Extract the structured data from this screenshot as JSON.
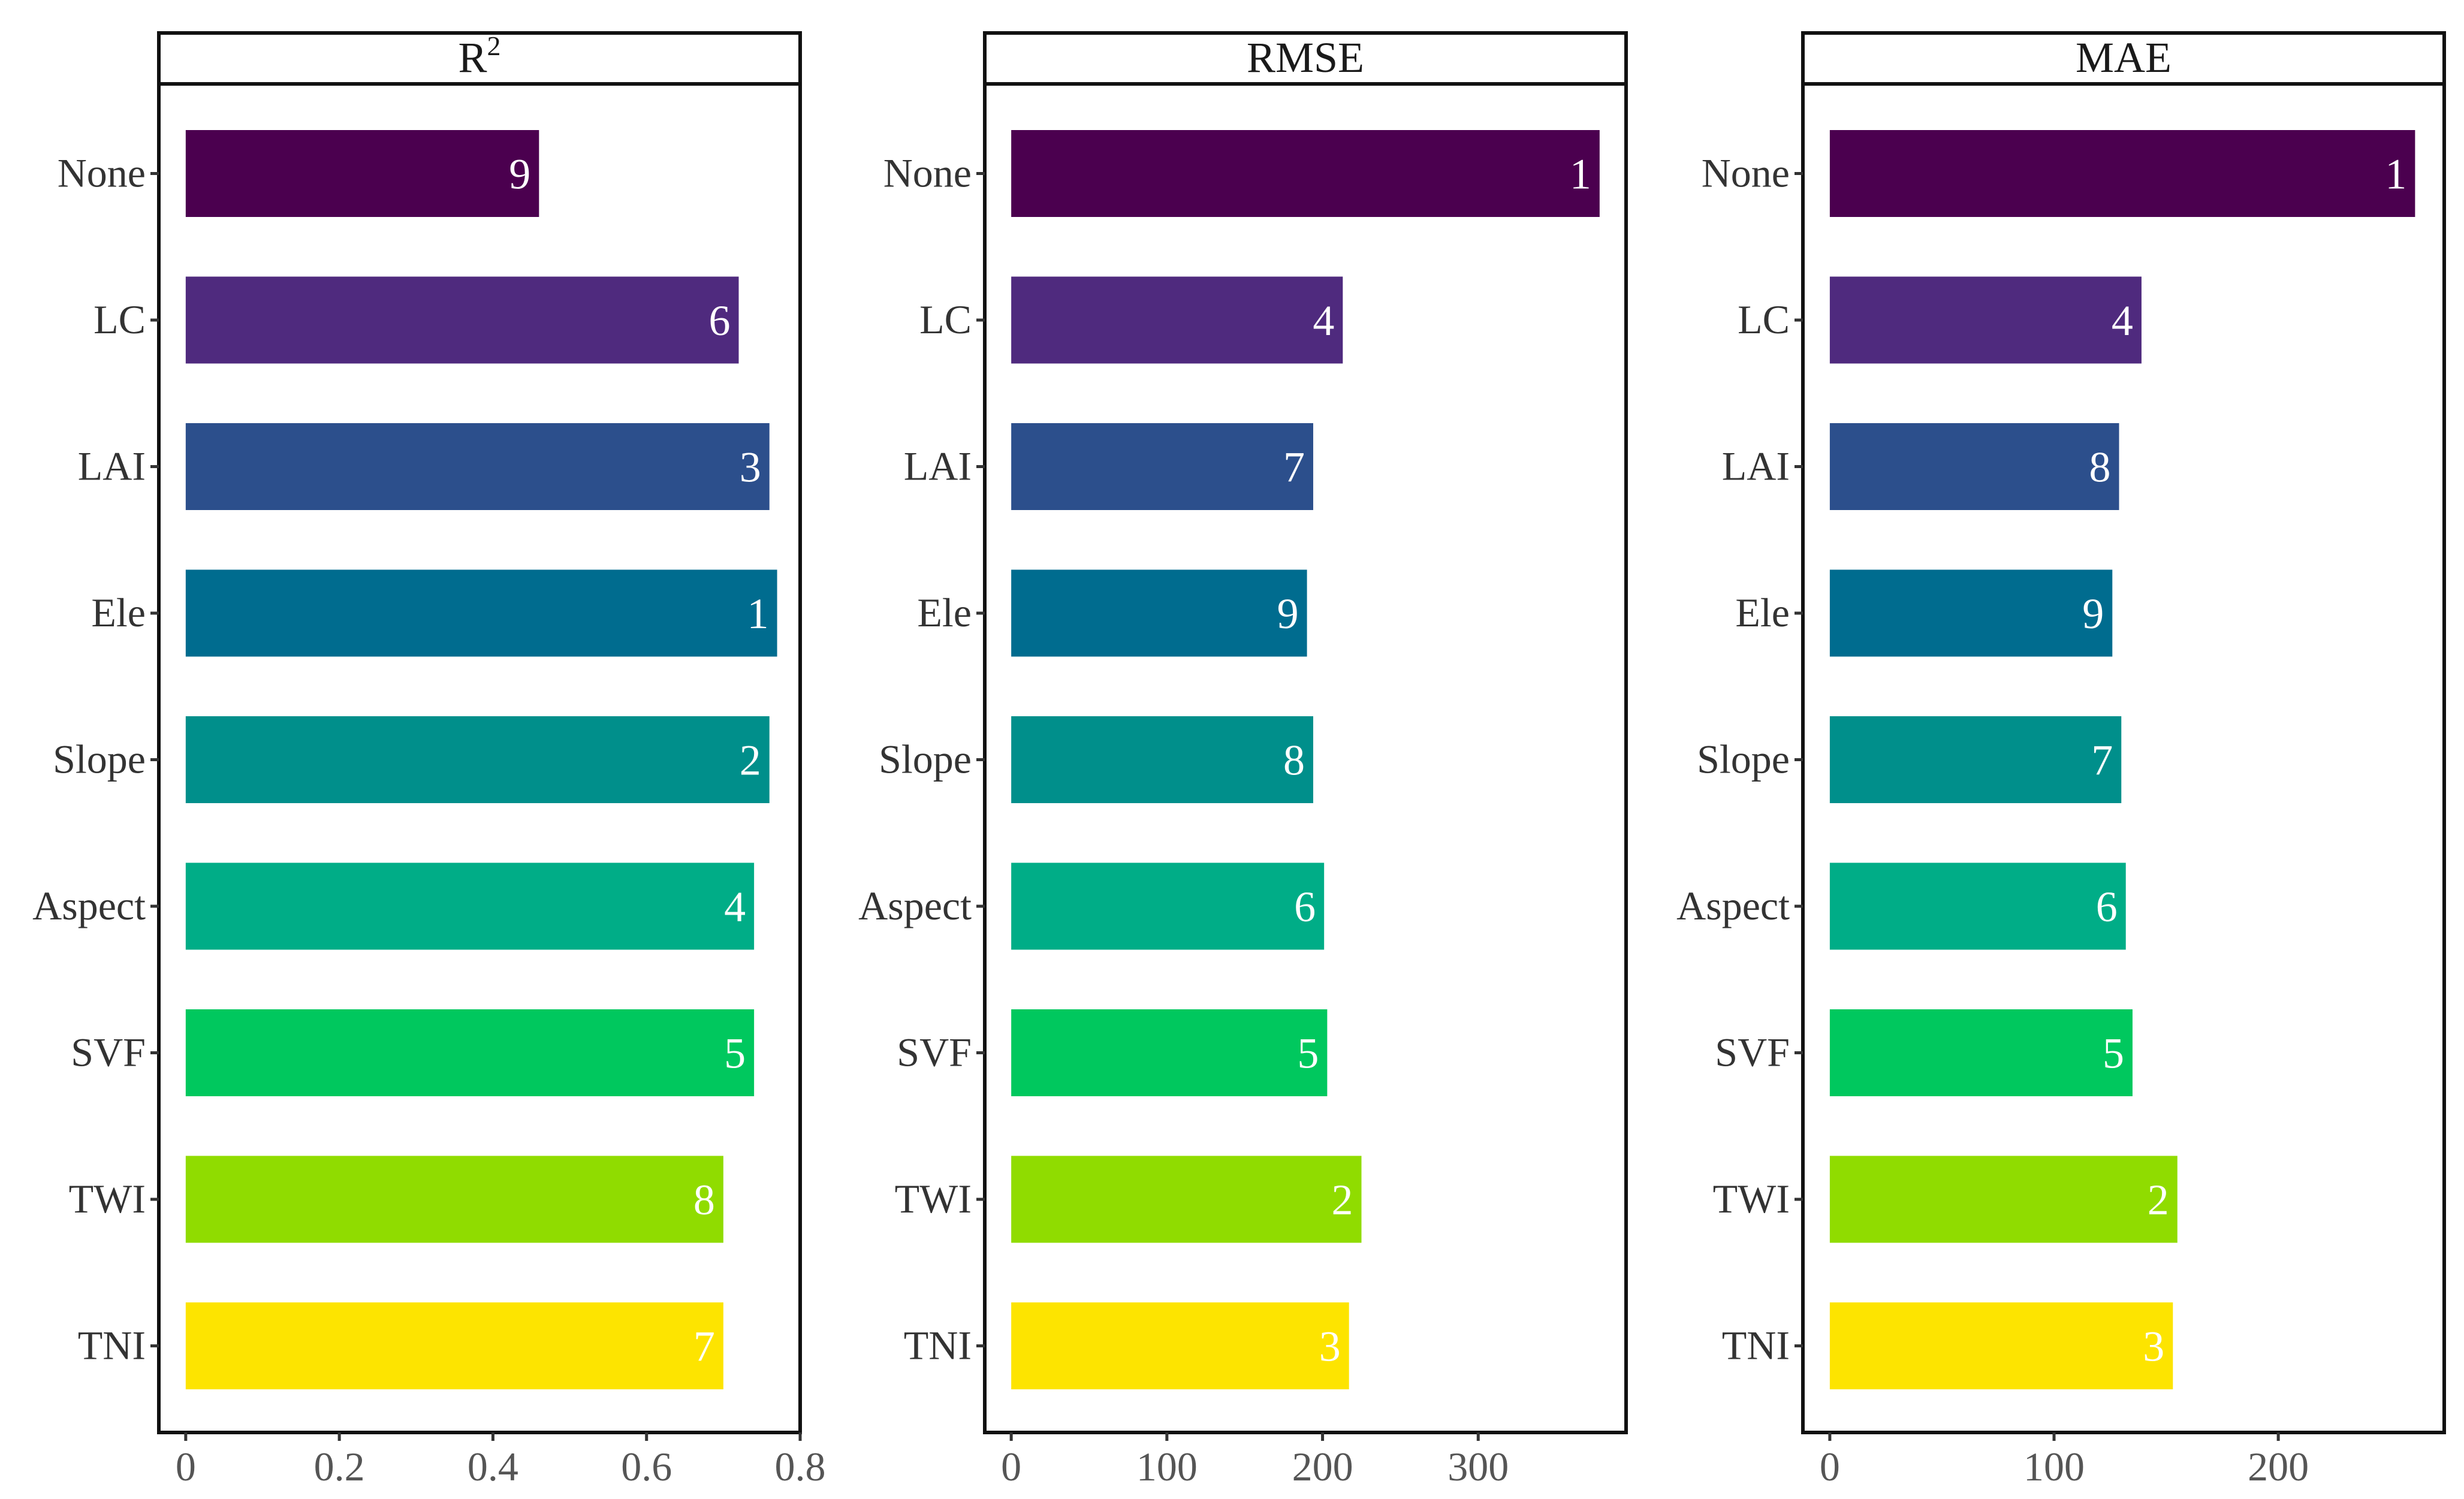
{
  "chart_data": [
    {
      "type": "bar",
      "orientation": "horizontal",
      "title": "R",
      "title_sup": "2",
      "categories": [
        "None",
        "LC",
        "LAI",
        "Ele",
        "Slope",
        "Aspect",
        "SVF",
        "TWI",
        "TNI"
      ],
      "values": [
        0.46,
        0.72,
        0.76,
        0.77,
        0.76,
        0.74,
        0.74,
        0.7,
        0.7
      ],
      "ranks": [
        "9",
        "6",
        "3",
        "1",
        "2",
        "4",
        "5",
        "8",
        "7"
      ],
      "xlim": [
        -0.035,
        0.8
      ],
      "xticks": [
        0,
        0.2,
        0.4,
        0.6,
        0.8
      ],
      "xtick_labels": [
        "0",
        "0.2",
        "0.4",
        "0.6",
        "0.8"
      ]
    },
    {
      "type": "bar",
      "orientation": "horizontal",
      "title": "RMSE",
      "categories": [
        "None",
        "LC",
        "LAI",
        "Ele",
        "Slope",
        "Aspect",
        "SVF",
        "TWI",
        "TNI"
      ],
      "values": [
        378,
        213,
        194,
        190,
        194,
        201,
        203,
        225,
        217
      ],
      "ranks": [
        "1",
        "4",
        "7",
        "9",
        "8",
        "6",
        "5",
        "2",
        "3"
      ],
      "xlim": [
        -17,
        395
      ],
      "xticks": [
        0,
        100,
        200,
        300
      ],
      "xtick_labels": [
        "0",
        "100",
        "200",
        "300"
      ]
    },
    {
      "type": "bar",
      "orientation": "horizontal",
      "title": "MAE",
      "categories": [
        "None",
        "LC",
        "LAI",
        "Ele",
        "Slope",
        "Aspect",
        "SVF",
        "TWI",
        "TNI"
      ],
      "values": [
        261,
        139,
        129,
        126,
        130,
        132,
        135,
        155,
        153
      ],
      "ranks": [
        "1",
        "4",
        "8",
        "9",
        "7",
        "6",
        "5",
        "2",
        "3"
      ],
      "xlim": [
        -12,
        274
      ],
      "xticks": [
        0,
        100,
        200
      ],
      "xtick_labels": [
        "0",
        "100",
        "200"
      ]
    }
  ],
  "colors": [
    "#440154",
    "#482878",
    "#3e4989",
    "#31688e",
    "#26828e",
    "#1f9e89",
    "#35b779",
    "#6ece58",
    "#fde725"
  ],
  "display_colors": [
    "#4b004f",
    "#4f2a7e",
    "#2c4f8c",
    "#006c8f",
    "#008f8b",
    "#00ad87",
    "#00c85e",
    "#90dc00",
    "#fde400"
  ]
}
